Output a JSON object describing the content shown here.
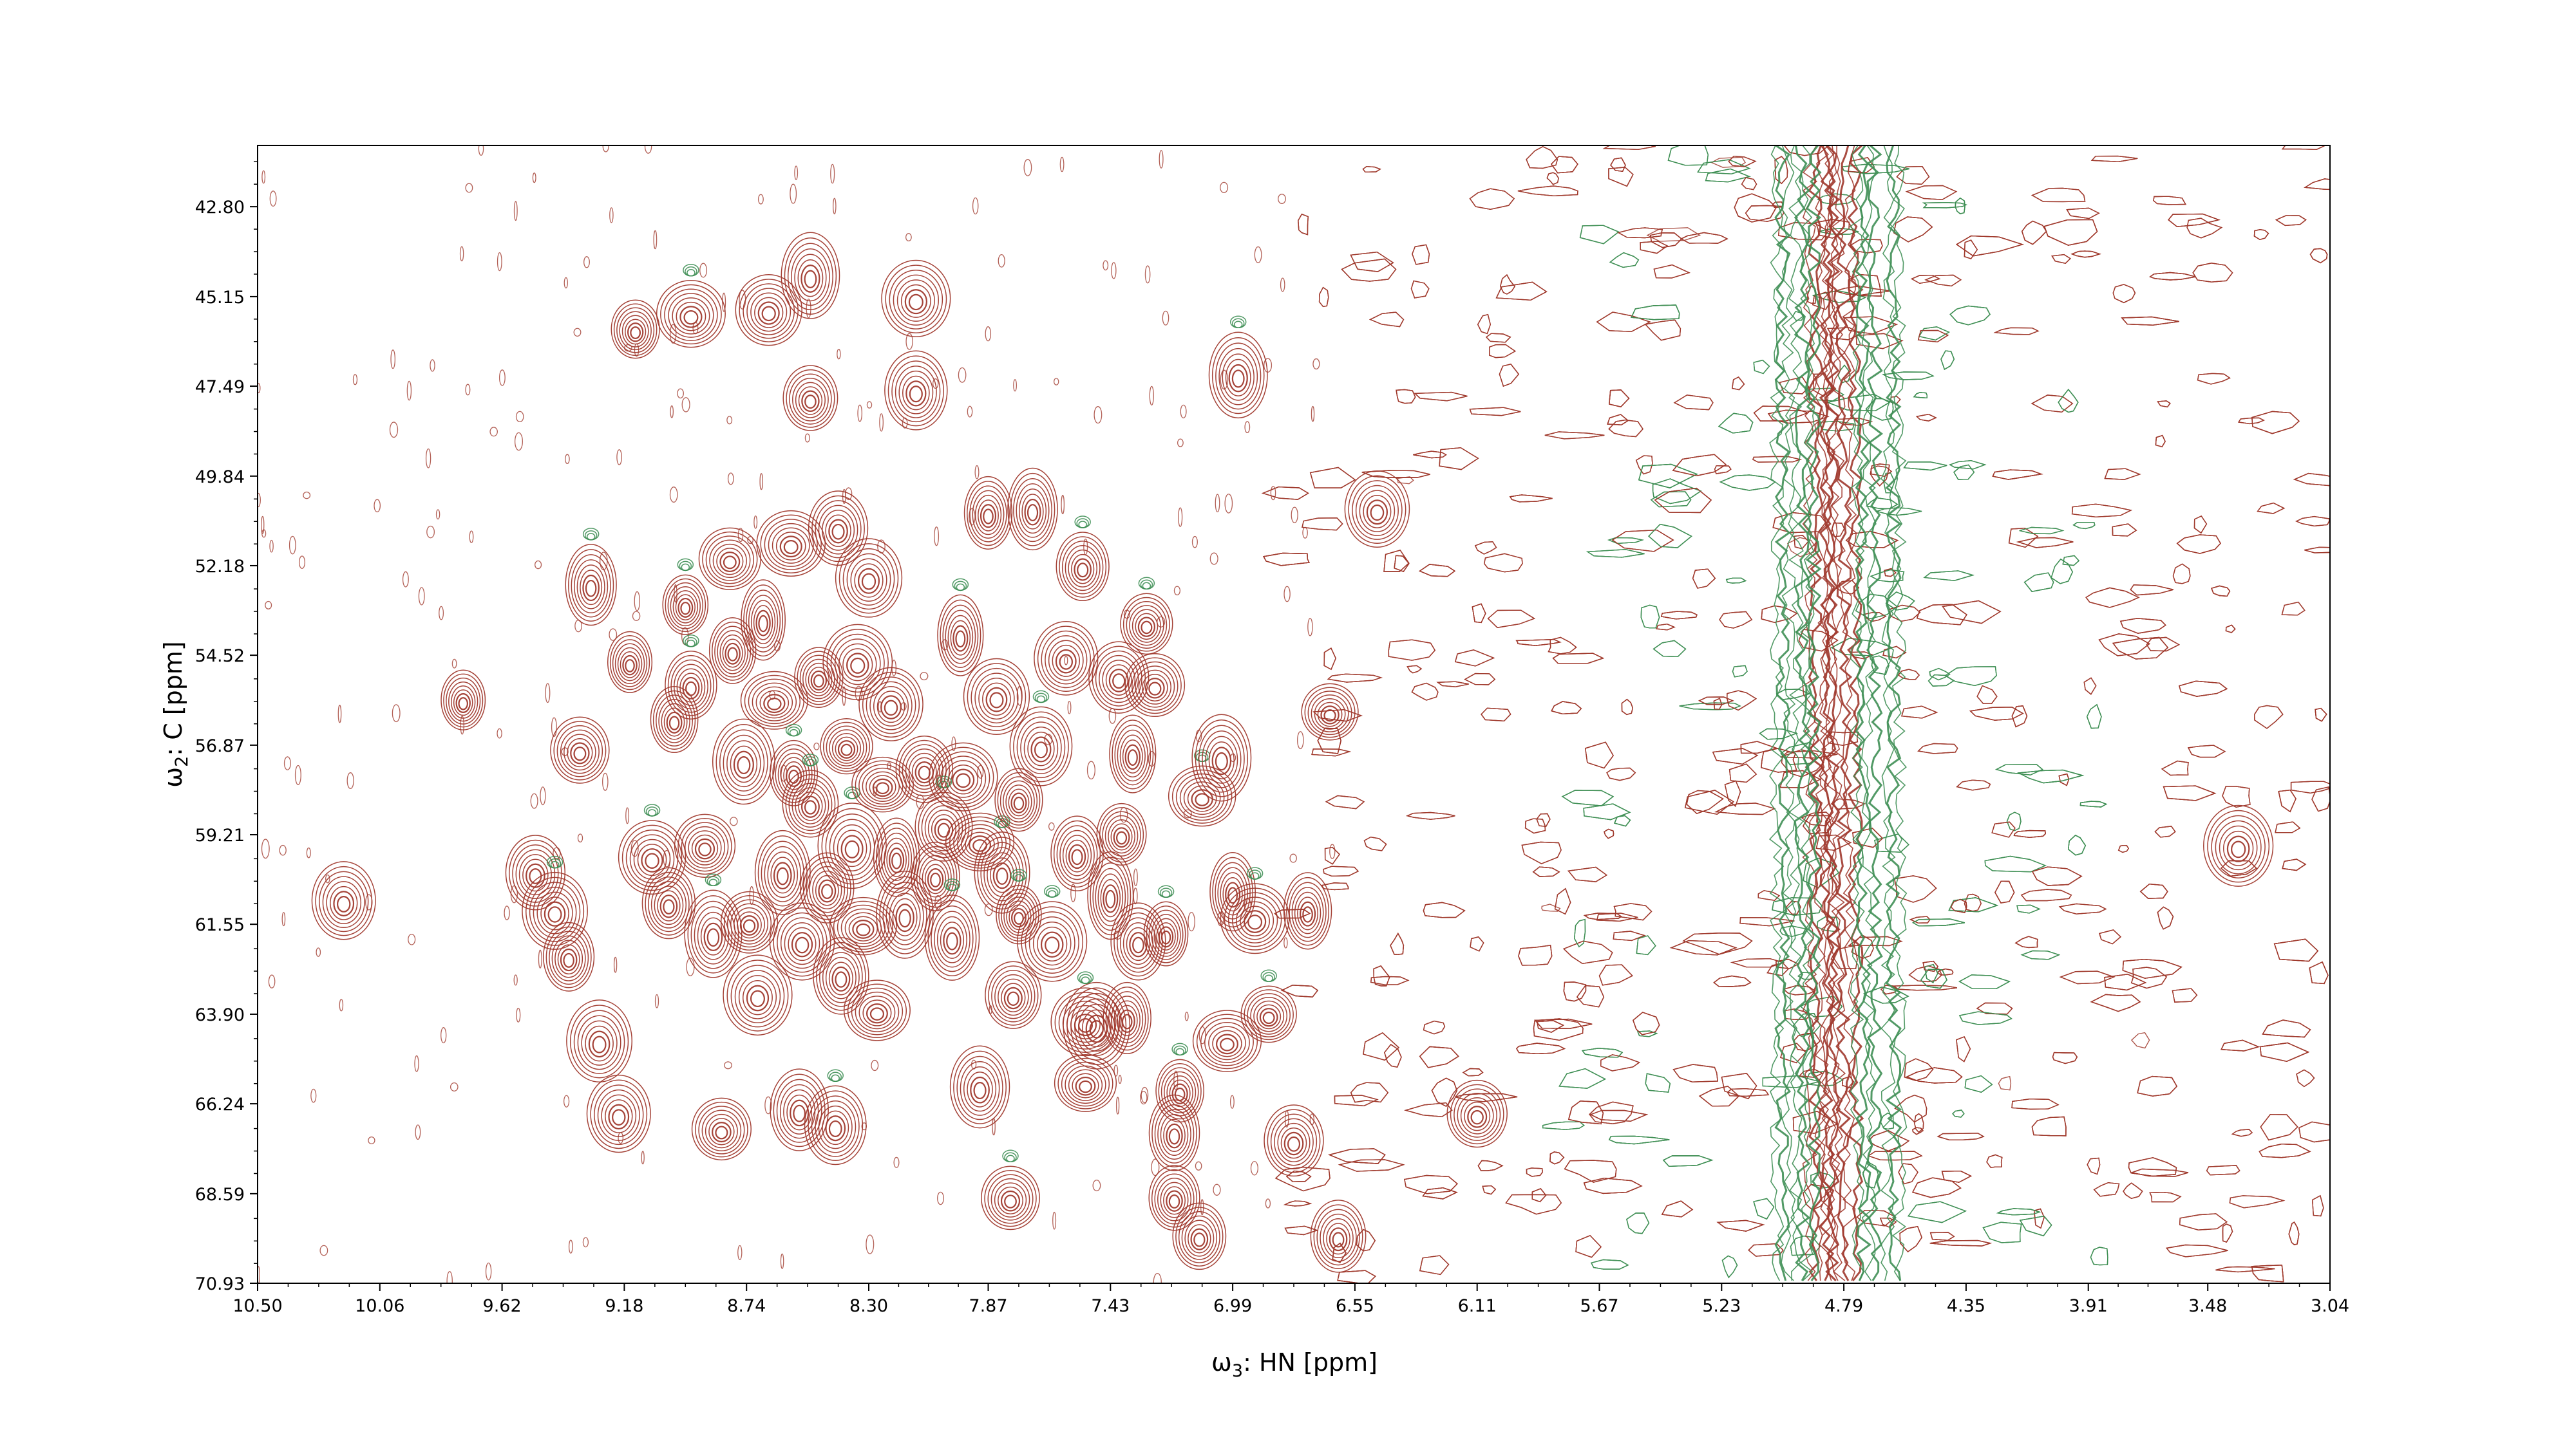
{
  "chart_data": {
    "type": "contour",
    "title": "",
    "xlabel": {
      "main": "ω",
      "sub": "3",
      "rest": ": HN [ppm]"
    },
    "ylabel": {
      "main": "ω",
      "sub": "2",
      "rest": ": C [ppm]"
    },
    "xlim": [
      10.5,
      3.04
    ],
    "ylim": [
      70.93,
      41.2
    ],
    "x_reversed": true,
    "y_reversed": true,
    "x_ticks": [
      "10.50",
      "10.06",
      "9.62",
      "9.18",
      "8.74",
      "8.30",
      "7.87",
      "7.43",
      "6.99",
      "6.55",
      "6.11",
      "5.67",
      "5.23",
      "4.79",
      "4.35",
      "3.91",
      "3.48",
      "3.04"
    ],
    "y_ticks": [
      "42.80",
      "45.15",
      "47.49",
      "49.84",
      "52.18",
      "54.52",
      "56.87",
      "59.21",
      "61.55",
      "63.90",
      "66.24",
      "68.59",
      "70.93"
    ],
    "grid": false,
    "colors": {
      "positive": "#a0392d",
      "negative": "#3f8f55"
    },
    "peaks": [
      [
        10.19,
        60.93
      ],
      [
        9.76,
        55.69
      ],
      [
        9.5,
        60.2
      ],
      [
        9.43,
        61.2
      ],
      [
        9.38,
        62.4
      ],
      [
        9.3,
        52.68
      ],
      [
        9.34,
        57.0
      ],
      [
        9.27,
        64.6
      ],
      [
        9.2,
        66.5
      ],
      [
        9.16,
        54.7
      ],
      [
        9.14,
        46.0
      ],
      [
        9.08,
        59.8
      ],
      [
        9.02,
        61.0
      ],
      [
        9.0,
        56.2
      ],
      [
        8.96,
        53.2
      ],
      [
        8.94,
        45.6
      ],
      [
        8.94,
        55.3
      ],
      [
        8.89,
        59.5
      ],
      [
        8.86,
        61.8
      ],
      [
        8.83,
        66.9
      ],
      [
        8.8,
        52.0
      ],
      [
        8.79,
        54.4
      ],
      [
        8.75,
        57.3
      ],
      [
        8.73,
        61.5
      ],
      [
        8.7,
        63.4
      ],
      [
        8.68,
        53.6
      ],
      [
        8.66,
        45.5
      ],
      [
        8.64,
        55.7
      ],
      [
        8.61,
        60.2
      ],
      [
        8.58,
        51.6
      ],
      [
        8.57,
        57.6
      ],
      [
        8.55,
        66.4
      ],
      [
        8.54,
        62.0
      ],
      [
        8.51,
        47.8
      ],
      [
        8.51,
        44.6
      ],
      [
        8.51,
        58.4
      ],
      [
        8.48,
        55.1
      ],
      [
        8.45,
        60.6
      ],
      [
        8.42,
        66.8
      ],
      [
        8.41,
        51.2
      ],
      [
        8.4,
        62.9
      ],
      [
        8.38,
        56.9
      ],
      [
        8.36,
        59.5
      ],
      [
        8.34,
        54.7
      ],
      [
        8.32,
        61.6
      ],
      [
        8.3,
        52.5
      ],
      [
        8.27,
        63.8
      ],
      [
        8.25,
        57.9
      ],
      [
        8.22,
        55.8
      ],
      [
        8.2,
        59.8
      ],
      [
        8.17,
        61.3
      ],
      [
        8.13,
        45.2
      ],
      [
        8.13,
        47.6
      ],
      [
        8.1,
        57.5
      ],
      [
        8.06,
        60.3
      ],
      [
        8.03,
        59.0
      ],
      [
        8.0,
        61.9
      ],
      [
        7.97,
        54.0
      ],
      [
        7.96,
        57.7
      ],
      [
        7.9,
        65.8
      ],
      [
        7.9,
        59.4
      ],
      [
        7.87,
        50.8
      ],
      [
        7.84,
        55.6
      ],
      [
        7.82,
        60.2
      ],
      [
        7.78,
        63.4
      ],
      [
        7.76,
        61.3
      ],
      [
        7.76,
        58.3
      ],
      [
        7.71,
        50.7
      ],
      [
        7.68,
        56.9
      ],
      [
        7.64,
        62.0
      ],
      [
        7.59,
        54.6
      ],
      [
        7.55,
        59.7
      ],
      [
        7.52,
        65.7
      ],
      [
        7.48,
        64.2
      ],
      [
        7.43,
        60.8
      ],
      [
        7.4,
        55.1
      ],
      [
        7.39,
        59.2
      ],
      [
        7.37,
        64.0
      ],
      [
        7.35,
        57.1
      ],
      [
        7.33,
        62.0
      ],
      [
        7.3,
        53.7
      ],
      [
        7.27,
        55.3
      ],
      [
        7.23,
        61.8
      ],
      [
        7.18,
        65.9
      ],
      [
        7.1,
        58.2
      ],
      [
        7.03,
        57.2
      ],
      [
        7.01,
        64.6
      ],
      [
        6.99,
        60.7
      ],
      [
        6.91,
        61.4
      ],
      [
        6.86,
        63.9
      ],
      [
        6.72,
        61.2
      ],
      [
        6.64,
        56.0
      ],
      [
        6.47,
        50.7
      ],
      [
        7.52,
        64.1
      ],
      [
        7.53,
        52.2
      ],
      [
        6.97,
        47.2
      ],
      [
        7.2,
        67.0
      ],
      [
        7.2,
        68.7
      ],
      [
        7.11,
        69.7
      ],
      [
        7.79,
        68.7
      ],
      [
        6.77,
        67.2
      ],
      [
        6.61,
        69.7
      ],
      [
        6.11,
        66.5
      ],
      [
        3.37,
        59.5
      ]
    ]
  }
}
